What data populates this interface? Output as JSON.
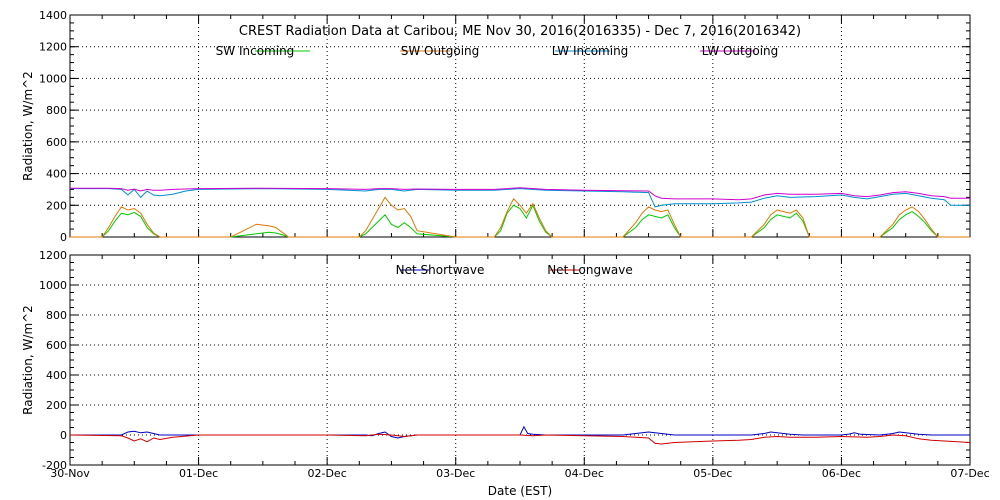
{
  "chart_data": [
    {
      "type": "line",
      "title": "CREST Radiation Data at Caribou, ME   Nov 30, 2016(2016335) - Dec  7, 2016(2016342)",
      "ylabel": "Radiation, W/m^2",
      "xlabel": "",
      "xlim": [
        0,
        7
      ],
      "ylim": [
        0,
        1400
      ],
      "yticks": [
        0,
        200,
        400,
        600,
        800,
        1000,
        1200,
        1400
      ],
      "grid": true,
      "legend_position": "top-center",
      "series": [
        {
          "name": "SW Incoming",
          "color": "#00cc00",
          "x": [
            0,
            0.25,
            0.3,
            0.35,
            0.4,
            0.45,
            0.5,
            0.55,
            0.6,
            0.65,
            0.7,
            1.0,
            1.25,
            1.35,
            1.45,
            1.55,
            1.6,
            1.65,
            1.7,
            2.0,
            2.25,
            2.3,
            2.35,
            2.4,
            2.45,
            2.5,
            2.55,
            2.6,
            2.65,
            2.7,
            3.0,
            3.3,
            3.35,
            3.4,
            3.45,
            3.5,
            3.55,
            3.6,
            3.65,
            3.7,
            3.75,
            4.0,
            4.3,
            4.4,
            4.45,
            4.5,
            4.55,
            4.6,
            4.65,
            4.7,
            4.75,
            5.0,
            5.3,
            5.4,
            5.45,
            5.5,
            5.55,
            5.6,
            5.65,
            5.7,
            5.75,
            6.0,
            6.3,
            6.4,
            6.45,
            6.5,
            6.55,
            6.6,
            6.65,
            6.7,
            6.75,
            7.0
          ],
          "y": [
            0,
            0,
            40,
            100,
            150,
            140,
            155,
            130,
            60,
            20,
            0,
            0,
            0,
            10,
            20,
            30,
            25,
            15,
            0,
            0,
            0,
            20,
            60,
            100,
            140,
            80,
            60,
            90,
            60,
            20,
            0,
            0,
            40,
            150,
            200,
            180,
            120,
            200,
            100,
            30,
            0,
            0,
            0,
            60,
            110,
            140,
            130,
            120,
            140,
            60,
            0,
            0,
            0,
            60,
            110,
            140,
            130,
            120,
            150,
            100,
            0,
            0,
            0,
            60,
            110,
            140,
            160,
            130,
            90,
            40,
            0,
            0
          ]
        },
        {
          "name": "SW Outgoing",
          "color": "#e07800",
          "x": [
            0,
            0.25,
            0.3,
            0.35,
            0.4,
            0.45,
            0.5,
            0.55,
            0.6,
            0.65,
            0.7,
            1.0,
            1.25,
            1.35,
            1.45,
            1.55,
            1.6,
            1.65,
            1.7,
            2.0,
            2.25,
            2.3,
            2.35,
            2.4,
            2.45,
            2.5,
            2.55,
            2.6,
            2.65,
            2.7,
            3.0,
            3.3,
            3.35,
            3.4,
            3.45,
            3.5,
            3.55,
            3.6,
            3.65,
            3.7,
            3.75,
            4.0,
            4.3,
            4.4,
            4.45,
            4.5,
            4.55,
            4.6,
            4.65,
            4.7,
            4.75,
            5.0,
            5.3,
            5.4,
            5.45,
            5.5,
            5.55,
            5.6,
            5.65,
            5.7,
            5.75,
            6.0,
            6.3,
            6.4,
            6.45,
            6.5,
            6.55,
            6.6,
            6.65,
            6.7,
            6.75,
            7.0
          ],
          "y": [
            0,
            0,
            60,
            130,
            190,
            170,
            180,
            150,
            80,
            25,
            0,
            0,
            0,
            40,
            80,
            70,
            60,
            30,
            0,
            0,
            0,
            40,
            110,
            180,
            250,
            200,
            170,
            180,
            130,
            40,
            0,
            0,
            60,
            160,
            240,
            200,
            150,
            210,
            120,
            40,
            0,
            0,
            0,
            90,
            150,
            190,
            170,
            160,
            170,
            80,
            0,
            0,
            0,
            80,
            140,
            170,
            160,
            150,
            170,
            120,
            0,
            0,
            0,
            80,
            140,
            170,
            190,
            160,
            110,
            50,
            0,
            0
          ]
        },
        {
          "name": "LW Incoming",
          "color": "#0090d0",
          "x": [
            0,
            0.3,
            0.4,
            0.45,
            0.5,
            0.55,
            0.6,
            0.65,
            0.7,
            0.8,
            0.9,
            1.0,
            1.5,
            2.0,
            2.3,
            2.4,
            2.5,
            2.6,
            2.7,
            3.0,
            3.3,
            3.5,
            3.7,
            4.0,
            4.3,
            4.5,
            4.55,
            4.6,
            4.7,
            5.0,
            5.2,
            5.3,
            5.4,
            5.5,
            5.6,
            5.8,
            6.0,
            6.1,
            6.2,
            6.3,
            6.4,
            6.5,
            6.6,
            6.7,
            6.8,
            6.85,
            6.9,
            7.0
          ],
          "y": [
            305,
            305,
            300,
            265,
            300,
            250,
            290,
            265,
            260,
            270,
            290,
            300,
            305,
            300,
            290,
            300,
            300,
            290,
            300,
            295,
            295,
            305,
            295,
            290,
            285,
            280,
            190,
            200,
            210,
            210,
            215,
            220,
            245,
            260,
            250,
            255,
            265,
            250,
            240,
            255,
            270,
            275,
            260,
            245,
            235,
            200,
            200,
            200
          ]
        },
        {
          "name": "LW Outgoing",
          "color": "#d000d0",
          "x": [
            0,
            0.3,
            0.4,
            0.45,
            0.5,
            0.55,
            0.6,
            0.65,
            0.7,
            0.8,
            0.9,
            1.0,
            1.5,
            2.0,
            2.3,
            2.4,
            2.5,
            2.6,
            2.7,
            3.0,
            3.3,
            3.5,
            3.7,
            4.0,
            4.3,
            4.5,
            4.55,
            4.6,
            4.7,
            5.0,
            5.2,
            5.3,
            5.4,
            5.5,
            5.6,
            5.8,
            6.0,
            6.1,
            6.2,
            6.3,
            6.4,
            6.5,
            6.6,
            6.7,
            6.8,
            6.85,
            6.9,
            7.0
          ],
          "y": [
            308,
            308,
            305,
            295,
            302,
            290,
            300,
            295,
            295,
            300,
            303,
            305,
            308,
            305,
            300,
            305,
            305,
            300,
            303,
            300,
            300,
            310,
            300,
            295,
            292,
            290,
            260,
            245,
            240,
            240,
            235,
            240,
            265,
            275,
            270,
            270,
            275,
            260,
            255,
            265,
            280,
            285,
            275,
            260,
            255,
            245,
            245,
            245
          ]
        }
      ]
    },
    {
      "type": "line",
      "title": "",
      "ylabel": "Radiation, W/m^2",
      "xlabel": "Date (EST)",
      "xlim": [
        0,
        7
      ],
      "ylim": [
        -200,
        1200
      ],
      "yticks": [
        -200,
        0,
        200,
        400,
        600,
        800,
        1000,
        1200
      ],
      "xticks": [
        "30-Nov",
        "01-Dec",
        "02-Dec",
        "03-Dec",
        "04-Dec",
        "05-Dec",
        "06-Dec",
        "07-Dec"
      ],
      "grid": true,
      "legend_position": "top-center",
      "series": [
        {
          "name": "Net Shortwave",
          "color": "#0000c0",
          "x": [
            0,
            0.4,
            0.45,
            0.5,
            0.55,
            0.6,
            0.65,
            0.7,
            1.0,
            2.0,
            2.3,
            2.35,
            2.4,
            2.45,
            2.5,
            2.55,
            2.6,
            2.65,
            2.7,
            3.0,
            3.5,
            3.53,
            3.56,
            3.6,
            3.7,
            4.0,
            4.3,
            4.4,
            4.5,
            4.55,
            4.6,
            4.7,
            5.0,
            5.3,
            5.4,
            5.45,
            5.5,
            5.55,
            5.6,
            5.7,
            5.9,
            6.0,
            6.05,
            6.1,
            6.15,
            6.3,
            6.4,
            6.45,
            6.5,
            6.55,
            6.6,
            6.7,
            7.0
          ],
          "y": [
            0,
            0,
            20,
            25,
            15,
            20,
            10,
            0,
            0,
            0,
            0,
            -5,
            10,
            20,
            -10,
            -20,
            -10,
            -5,
            0,
            0,
            0,
            55,
            10,
            5,
            0,
            0,
            0,
            10,
            20,
            15,
            10,
            0,
            0,
            0,
            10,
            20,
            15,
            10,
            5,
            0,
            0,
            0,
            5,
            15,
            5,
            0,
            10,
            20,
            15,
            10,
            5,
            0,
            0
          ]
        },
        {
          "name": "Net Longwave",
          "color": "#d00000",
          "x": [
            0,
            0.4,
            0.45,
            0.5,
            0.55,
            0.6,
            0.65,
            0.7,
            0.8,
            1.0,
            2.0,
            2.3,
            2.4,
            2.5,
            2.6,
            2.7,
            3.0,
            3.5,
            3.6,
            3.7,
            4.0,
            4.3,
            4.4,
            4.5,
            4.55,
            4.6,
            4.7,
            5.0,
            5.2,
            5.3,
            5.4,
            5.5,
            5.6,
            5.8,
            6.0,
            6.2,
            6.3,
            6.4,
            6.5,
            6.6,
            6.7,
            6.8,
            6.9,
            7.0
          ],
          "y": [
            0,
            -5,
            -20,
            -40,
            -25,
            -45,
            -20,
            -30,
            -15,
            0,
            0,
            -5,
            5,
            0,
            -10,
            0,
            0,
            0,
            -5,
            0,
            -5,
            -10,
            -15,
            -20,
            -55,
            -60,
            -50,
            -40,
            -35,
            -30,
            -15,
            -10,
            -15,
            -15,
            -10,
            -15,
            -10,
            0,
            -5,
            -25,
            -35,
            -40,
            -45,
            -50
          ]
        }
      ]
    }
  ]
}
